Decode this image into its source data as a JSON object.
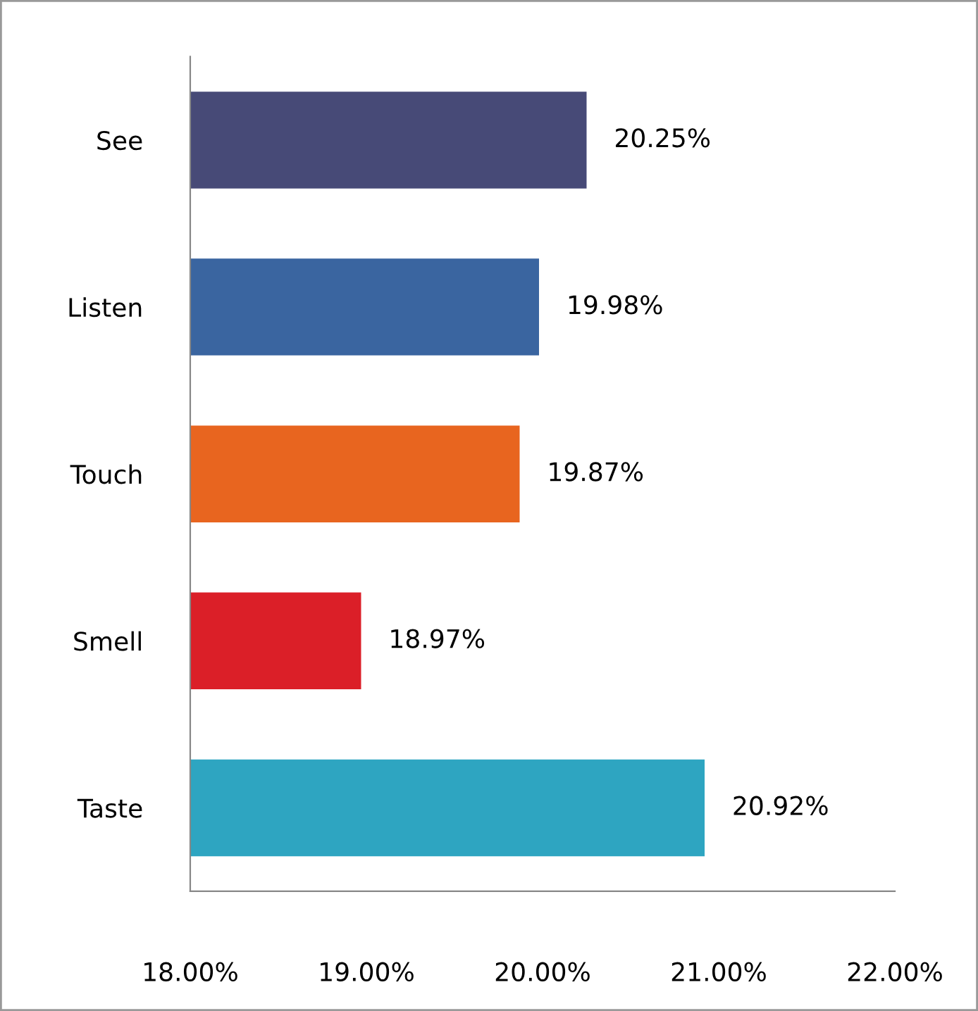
{
  "chart_data": {
    "type": "bar",
    "orientation": "horizontal",
    "categories": [
      "See",
      "Listen",
      "Touch",
      "Smell",
      "Taste"
    ],
    "values": [
      20.25,
      19.98,
      19.87,
      18.97,
      20.92
    ],
    "colors": [
      "#474a77",
      "#3a65a0",
      "#e8651f",
      "#db1f28",
      "#2ea5c1"
    ],
    "value_labels": [
      "20.25%",
      "19.98%",
      "19.87%",
      "18.97%",
      "20.92%"
    ],
    "xlim": [
      18,
      22
    ],
    "xticks": [
      {
        "value": 18,
        "label": "18.00%"
      },
      {
        "value": 19,
        "label": "19.00%"
      },
      {
        "value": 20,
        "label": "20.00%"
      },
      {
        "value": 21,
        "label": "21.00%"
      },
      {
        "value": 22,
        "label": "22.00%"
      }
    ],
    "grid": false,
    "legend": false
  }
}
